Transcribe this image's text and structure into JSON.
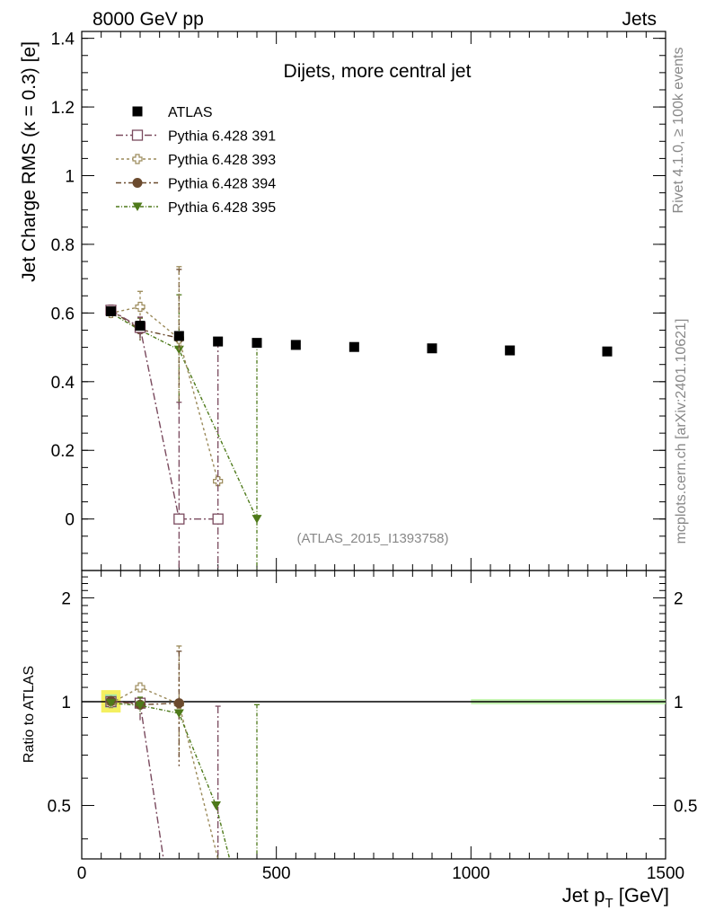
{
  "header": {
    "left": "8000 GeV pp",
    "right": "Jets"
  },
  "side_labels": {
    "rivet": "Rivet 4.1.0, ≥ 100k events",
    "mcplots": "mcplots.cern.ch [arXiv:2401.10621]"
  },
  "analysis_id": "(ATLAS_2015_I1393758)",
  "colors": {
    "atlas": "#000000",
    "p391": "#7a4a5e",
    "p393": "#9b8a5a",
    "p394": "#6b4a2e",
    "p395": "#4e7a1a"
  },
  "chart_data": [
    {
      "type": "scatter",
      "panel": "main",
      "title": "Dijets, more central jet",
      "xlabel": "Jet p_T [GeV]",
      "ylabel": "Jet Charge RMS (κ = 0.3) [e]",
      "xlim": [
        0,
        1500
      ],
      "ylim": [
        -0.15,
        1.42
      ],
      "yticks": [
        0,
        0.2,
        0.4,
        0.6,
        0.8,
        1,
        1.2,
        1.4
      ],
      "ytick_labels": [
        "0",
        "0.2",
        "0.4",
        "0.6",
        "0.8",
        "1",
        "1.2",
        "1.4"
      ],
      "legend_position": "top-left",
      "series": [
        {
          "name": "ATLAS",
          "key": "atlas",
          "marker": "filled-square",
          "x": [
            75,
            150,
            250,
            350,
            450,
            550,
            700,
            900,
            1100,
            1350
          ],
          "y": [
            0.605,
            0.563,
            0.533,
            0.517,
            0.513,
            0.507,
            0.501,
            0.497,
            0.491,
            0.488
          ]
        },
        {
          "name": "Pythia 6.428 391",
          "key": "p391",
          "marker": "open-square",
          "dash": "8,3,2,3",
          "x": [
            75,
            150,
            250,
            350
          ],
          "y": [
            0.608,
            0.558,
            0.0,
            0.0
          ],
          "err": [
            0.015,
            0.03,
            0.34,
            0.52
          ]
        },
        {
          "name": "Pythia 6.428 393",
          "key": "p393",
          "marker": "open-cross",
          "dash": "3,3",
          "x": [
            75,
            150,
            250,
            350
          ],
          "y": [
            0.6,
            0.618,
            0.525,
            0.11
          ],
          "err": [
            0.015,
            0.045,
            0.21,
            0.01
          ]
        },
        {
          "name": "Pythia 6.428 394",
          "key": "p394",
          "marker": "filled-circle",
          "dash": "6,3,2,3",
          "x": [
            75,
            150,
            250
          ],
          "y": [
            0.608,
            0.552,
            0.527
          ],
          "err": [
            0.015,
            0.035,
            0.2
          ]
        },
        {
          "name": "Pythia 6.428 395",
          "key": "p395",
          "marker": "filled-triangle-down",
          "dash": "4,2,1,2",
          "x": [
            75,
            150,
            250,
            450
          ],
          "y": [
            0.6,
            0.55,
            0.493,
            0.0
          ],
          "err": [
            0.015,
            0.035,
            0.16,
            0.51
          ]
        }
      ]
    },
    {
      "type": "line",
      "panel": "ratio",
      "xlabel": "Jet p_T [GeV]",
      "ylabel": "Ratio to ATLAS",
      "xlim": [
        0,
        1500
      ],
      "ylim": [
        0.35,
        2.4
      ],
      "yticks": [
        0.5,
        1,
        2
      ],
      "ytick_labels": [
        "0.5",
        "1",
        "2"
      ],
      "xticks": [
        0,
        500,
        1000,
        1500
      ],
      "xtick_labels": [
        "0",
        "500",
        "1000",
        "1500"
      ],
      "reference": 1,
      "series": [
        {
          "key": "p391",
          "x": [
            75,
            150,
            210
          ],
          "y": [
            1.0,
            0.99,
            0.35
          ]
        },
        {
          "key": "p393",
          "x": [
            75,
            150,
            250,
            350
          ],
          "y": [
            0.99,
            1.1,
            0.985,
            0.35
          ]
        },
        {
          "key": "p394",
          "x": [
            75,
            150,
            250
          ],
          "y": [
            1.005,
            0.98,
            0.99
          ]
        },
        {
          "key": "p395",
          "x": [
            75,
            150,
            250,
            345,
            380
          ],
          "y": [
            0.99,
            0.975,
            0.925,
            0.5,
            0.35
          ]
        }
      ]
    }
  ]
}
